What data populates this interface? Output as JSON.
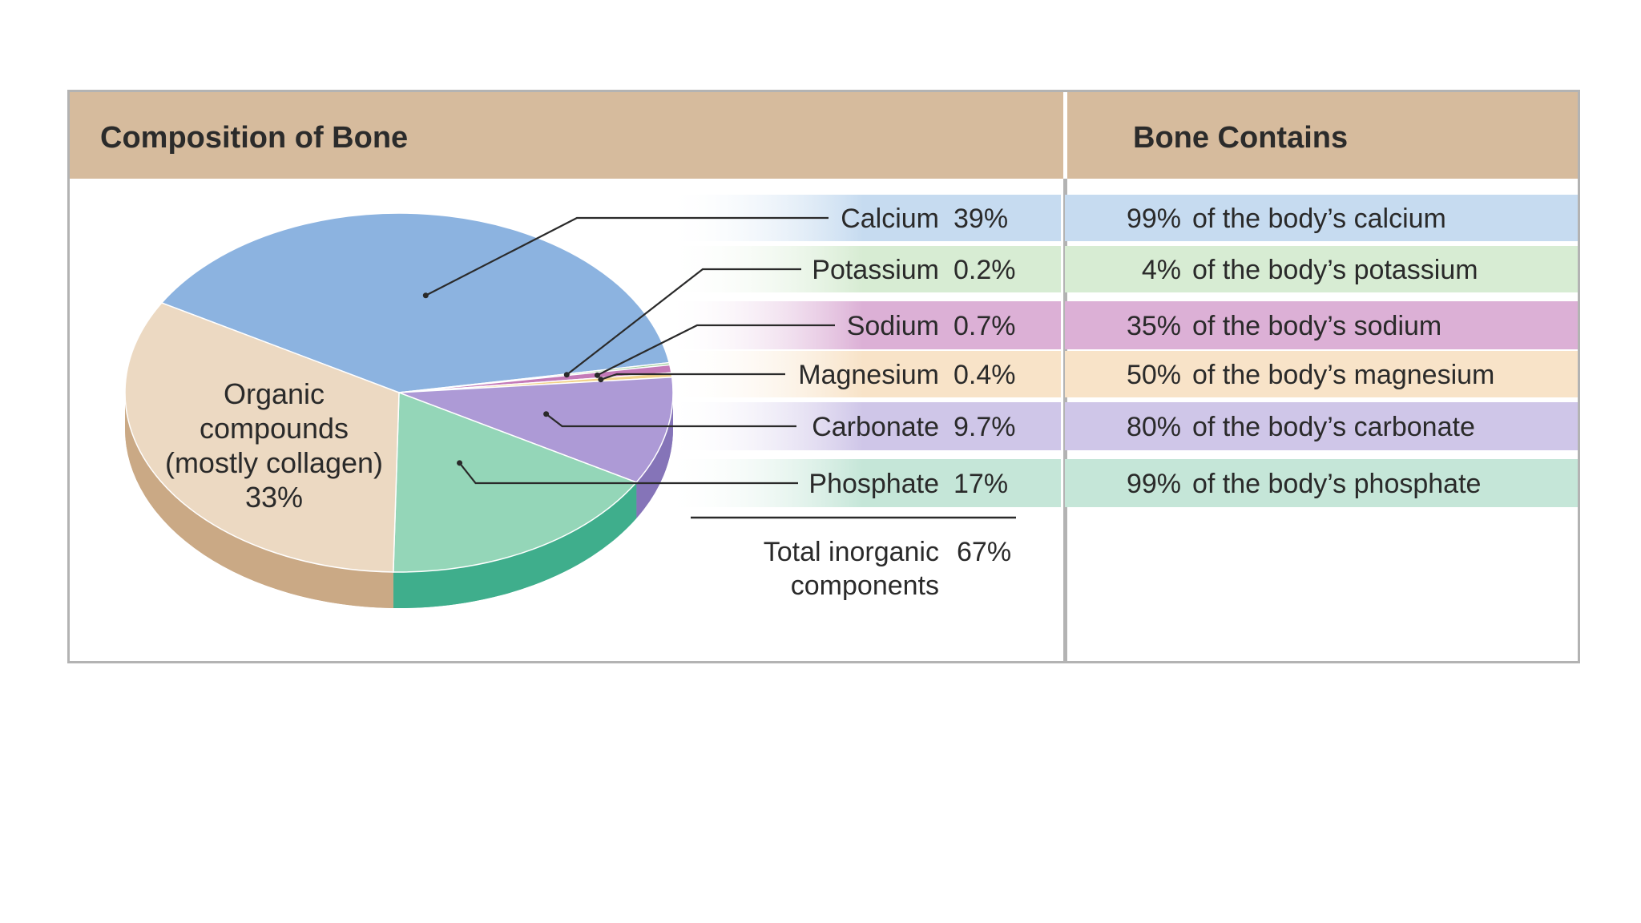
{
  "panels": {
    "left_title": "Composition of Bone",
    "right_title": "Bone Contains"
  },
  "chart_data": {
    "type": "pie",
    "title": "Composition of Bone",
    "slices": [
      {
        "label": "Calcium",
        "value": 39,
        "value_label": "39%",
        "color": "#8cb3e0",
        "side_color": "#6f98c9",
        "band_color": "#c6dbf0",
        "contains_pct": "99%",
        "contains_text": "of the body’s calcium"
      },
      {
        "label": "Potassium",
        "value": 0.2,
        "value_label": "0.2%",
        "color": "#9fcf9a",
        "side_color": "#7fb37a",
        "band_color": "#d7ecd3",
        "contains_pct": "4%",
        "contains_text": "of the body’s potassium"
      },
      {
        "label": "Sodium",
        "value": 0.7,
        "value_label": "0.7%",
        "color": "#c47ab8",
        "side_color": "#a35b97",
        "band_color": "#dcb0d6",
        "contains_pct": "35%",
        "contains_text": "of the body’s sodium"
      },
      {
        "label": "Magnesium",
        "value": 0.4,
        "value_label": "0.4%",
        "color": "#f2d38a",
        "side_color": "#d8b56a",
        "band_color": "#f8e3c8",
        "contains_pct": "50%",
        "contains_text": "of the body’s magnesium"
      },
      {
        "label": "Carbonate",
        "value": 9.7,
        "value_label": "9.7%",
        "color": "#ad9ad6",
        "side_color": "#8574b8",
        "band_color": "#cfc6e8",
        "contains_pct": "80%",
        "contains_text": "of the body’s carbonate"
      },
      {
        "label": "Phosphate",
        "value": 17,
        "value_label": "17%",
        "color": "#94d6b8",
        "side_color": "#3fae8c",
        "band_color": "#c5e6d8",
        "contains_pct": "99%",
        "contains_text": "of the body’s phosphate"
      },
      {
        "label": "Organic compounds (mostly collagen)",
        "value": 33,
        "value_label": "33%",
        "color": "#ecd9c2",
        "side_color": "#caa985",
        "label_lines": [
          "Organic",
          "compounds",
          "(mostly collagen)",
          "33%"
        ]
      }
    ],
    "total": {
      "label_lines": [
        "Total inorganic",
        "components"
      ],
      "value_label": "67%"
    }
  }
}
